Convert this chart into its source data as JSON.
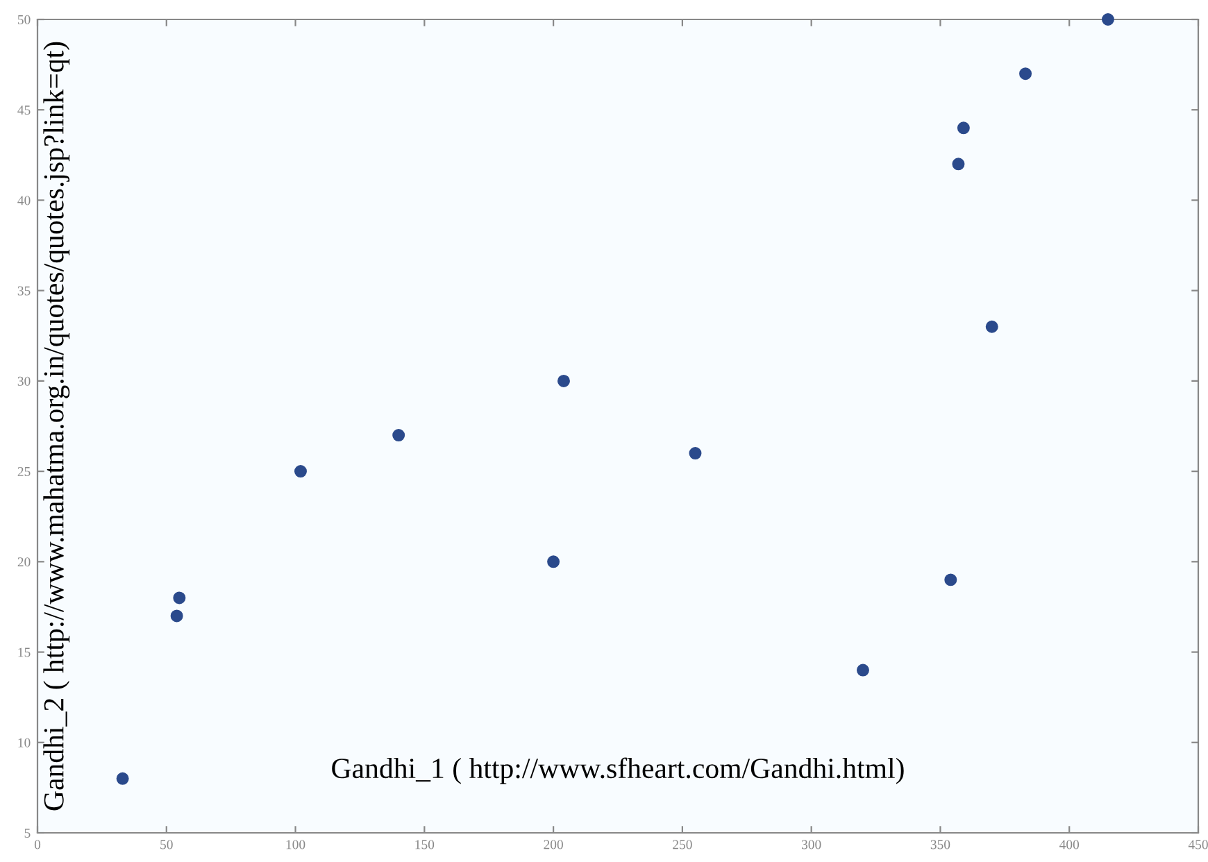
{
  "chart_data": {
    "type": "scatter",
    "xlabel": "Gandhi_1 ( http://www.sfheart.com/Gandhi.html)",
    "ylabel": "Gandhi_2 ( http://www.mahatma.org.in/quotes/quotes.jsp?link=qt)",
    "x": [
      33,
      54,
      55,
      102,
      140,
      200,
      204,
      255,
      320,
      354,
      357,
      359,
      370,
      383,
      415
    ],
    "series": [
      {
        "color": "#2b4a8c",
        "values": [
          8,
          17,
          18,
          25,
          27,
          20,
          30,
          26,
          14,
          19,
          42,
          44,
          33,
          47,
          50
        ]
      }
    ],
    "xlim": [
      0,
      450
    ],
    "xticks": [
      0,
      50,
      100,
      150,
      200,
      250,
      300,
      350,
      400,
      450
    ],
    "ylim": [
      5,
      50
    ],
    "yticks": [
      5,
      10,
      15,
      20,
      25,
      30,
      35,
      40,
      45,
      50
    ],
    "marker": "circle",
    "grid": false,
    "legend": false
  }
}
